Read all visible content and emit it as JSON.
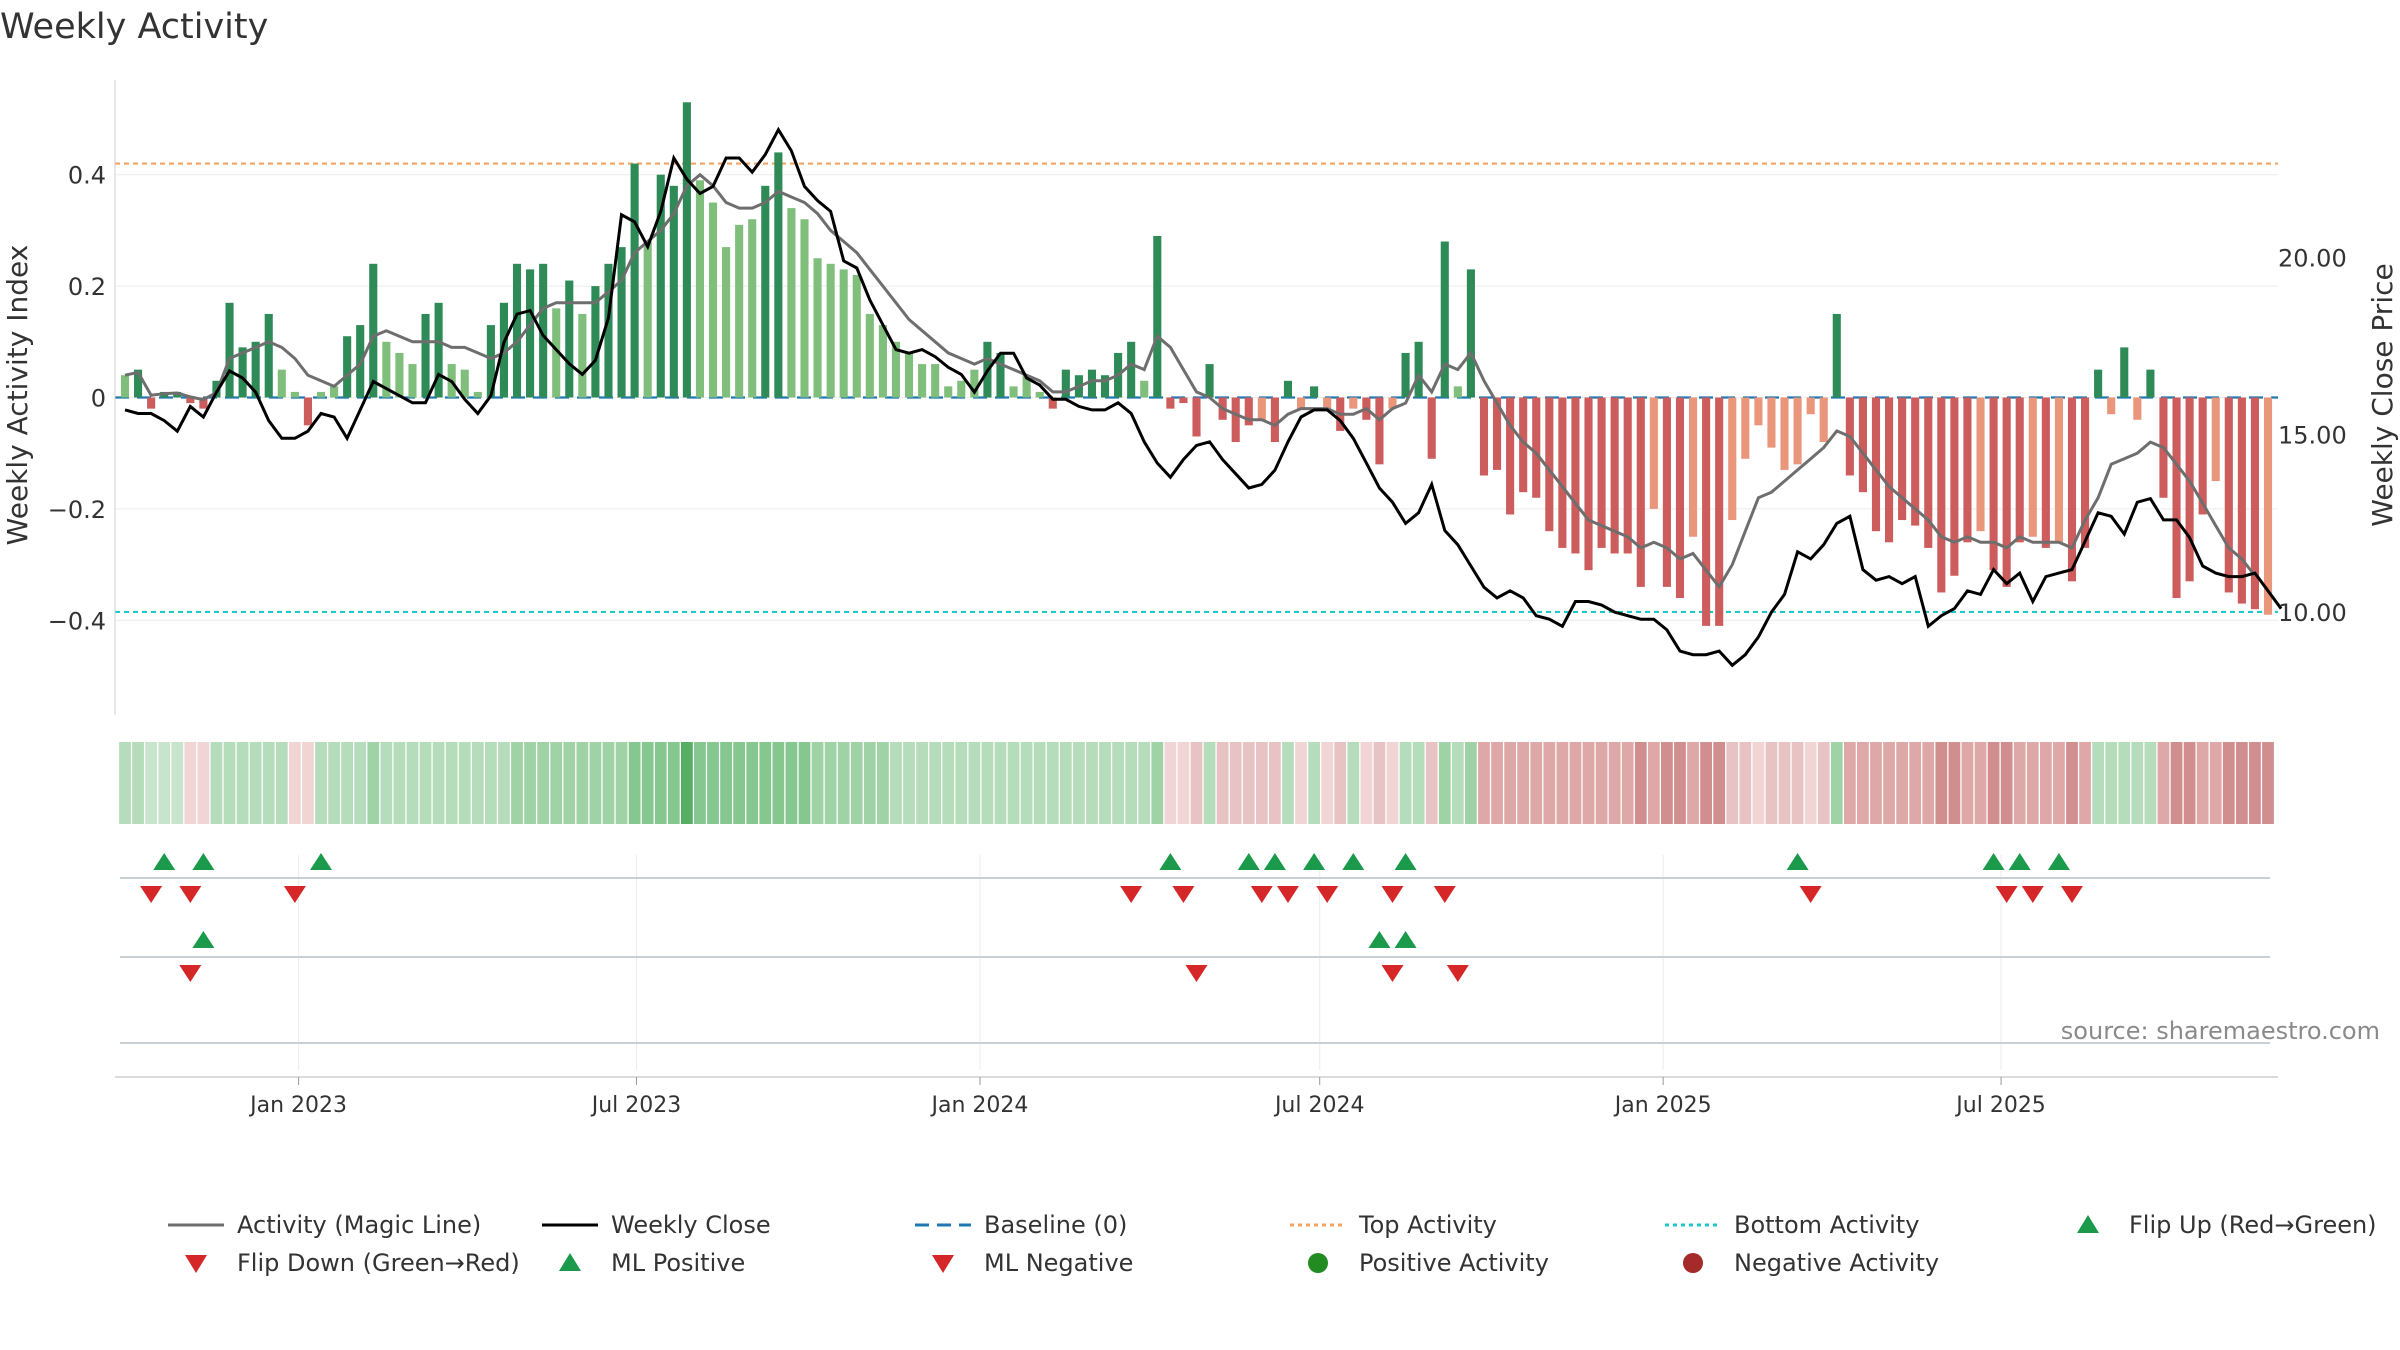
{
  "title": "Weekly Activity",
  "source": "source: sharemaestro.com",
  "colors": {
    "pos_dark": "#2e8b57",
    "pos_light": "#7fbf7b",
    "neg_dark": "#cd5c5c",
    "neg_light": "#e9967a",
    "magic": "#6e6e6e",
    "close": "#000000",
    "baseline": "#1f77b4",
    "top": "#f4a460",
    "bottom": "#20c9c9",
    "up": "#1a9a4a",
    "down": "#d62728",
    "pos_dot": "#228b22",
    "neg_dot": "#a52a2a"
  },
  "legend": [
    {
      "label": "Activity (Magic Line)",
      "kind": "line",
      "color": "#6e6e6e",
      "dash": ""
    },
    {
      "label": "Weekly Close",
      "kind": "line",
      "color": "#000000",
      "dash": ""
    },
    {
      "label": "Baseline (0)",
      "kind": "line",
      "color": "#1f77b4",
      "dash": "14,8"
    },
    {
      "label": "Top Activity",
      "kind": "line",
      "color": "#f4a460",
      "dash": "4,4"
    },
    {
      "label": "Bottom Activity",
      "kind": "line",
      "color": "#20c9c9",
      "dash": "4,4"
    },
    {
      "label": "Flip Up (Red→Green)",
      "kind": "tri-up",
      "color": "#1a9a4a"
    },
    {
      "label": "Flip Down (Green→Red)",
      "kind": "tri-down",
      "color": "#d62728"
    },
    {
      "label": "ML Positive",
      "kind": "tri-up",
      "color": "#1a9a4a"
    },
    {
      "label": "ML Negative",
      "kind": "tri-down",
      "color": "#d62728"
    },
    {
      "label": "Positive Activity",
      "kind": "dot",
      "color": "#228b22"
    },
    {
      "label": "Negative Activity",
      "kind": "dot",
      "color": "#a52a2a"
    }
  ],
  "chart_data": {
    "type": "bar",
    "title": "Weekly Activity",
    "ylabel": "Weekly Activity Index",
    "y2label": "Weekly Close Price",
    "ylim": [
      -0.57,
      0.57
    ],
    "y2lim": [
      7.1,
      25.0
    ],
    "yticks": [
      "0.4",
      "0.2",
      "0",
      "−0.2",
      "−0.4"
    ],
    "ytick_values": [
      0.4,
      0.2,
      0,
      -0.2,
      -0.4
    ],
    "y2ticks": [
      "20.00",
      "15.00",
      "10.00"
    ],
    "y2tick_values": [
      20,
      15,
      10
    ],
    "x_start": "2022-09-30",
    "x_step_days": 7,
    "x_ticks": [
      {
        "label": "Jan 2023",
        "date": "2023-01-01"
      },
      {
        "label": "Jul 2023",
        "date": "2023-07-01"
      },
      {
        "label": "Jan 2024",
        "date": "2024-01-01"
      },
      {
        "label": "Jul 2024",
        "date": "2024-07-01"
      },
      {
        "label": "Jan 2025",
        "date": "2025-01-01"
      },
      {
        "label": "Jul 2025",
        "date": "2025-07-01"
      }
    ],
    "top_activity": 0.42,
    "bottom_activity": -0.385,
    "grid": true,
    "legend_position": "bottom",
    "activity": [
      0.04,
      0.05,
      -0.02,
      0.01,
      0.01,
      -0.01,
      -0.02,
      0.03,
      0.17,
      0.09,
      0.1,
      0.15,
      0.05,
      0.01,
      -0.05,
      0.01,
      0.02,
      0.11,
      0.13,
      0.24,
      0.1,
      0.08,
      0.06,
      0.15,
      0.17,
      0.06,
      0.05,
      0.01,
      0.13,
      0.17,
      0.24,
      0.23,
      0.24,
      0.16,
      0.21,
      0.15,
      0.2,
      0.24,
      0.27,
      0.42,
      0.28,
      0.4,
      0.38,
      0.53,
      0.39,
      0.35,
      0.27,
      0.31,
      0.32,
      0.38,
      0.44,
      0.34,
      0.32,
      0.25,
      0.24,
      0.23,
      0.22,
      0.15,
      0.13,
      0.1,
      0.08,
      0.06,
      0.06,
      0.02,
      0.03,
      0.05,
      0.1,
      0.08,
      0.02,
      0.04,
      0.01,
      -0.02,
      0.05,
      0.04,
      0.05,
      0.04,
      0.08,
      0.1,
      0.03,
      0.29,
      -0.02,
      -0.01,
      -0.07,
      0.06,
      -0.04,
      -0.08,
      -0.05,
      -0.04,
      -0.08,
      0.03,
      -0.02,
      0.02,
      -0.02,
      -0.06,
      -0.02,
      -0.04,
      -0.12,
      -0.02,
      0.08,
      0.1,
      -0.11,
      0.28,
      0.02,
      0.23,
      -0.14,
      -0.13,
      -0.21,
      -0.17,
      -0.18,
      -0.24,
      -0.27,
      -0.28,
      -0.31,
      -0.27,
      -0.28,
      -0.28,
      -0.34,
      -0.2,
      -0.34,
      -0.36,
      -0.25,
      -0.41,
      -0.41,
      -0.22,
      -0.11,
      -0.05,
      -0.09,
      -0.13,
      -0.12,
      -0.03,
      -0.08,
      0.15,
      -0.14,
      -0.17,
      -0.24,
      -0.26,
      -0.22,
      -0.23,
      -0.27,
      -0.35,
      -0.32,
      -0.26,
      -0.24,
      -0.31,
      -0.34,
      -0.26,
      -0.25,
      -0.27,
      -0.26,
      -0.33,
      -0.27,
      0.05,
      -0.03,
      0.09,
      -0.04,
      0.05,
      -0.18,
      -0.36,
      -0.33,
      -0.21,
      -0.15,
      -0.35,
      -0.37,
      -0.38,
      -0.39
    ],
    "magic_line": [
      0.04,
      0.045,
      0.004,
      0.007,
      0.008,
      0.001,
      -0.004,
      0.009,
      0.07,
      0.08,
      0.09,
      0.1,
      0.09,
      0.07,
      0.04,
      0.03,
      0.02,
      0.04,
      0.06,
      0.11,
      0.12,
      0.11,
      0.1,
      0.1,
      0.1,
      0.09,
      0.09,
      0.08,
      0.07,
      0.08,
      0.1,
      0.13,
      0.16,
      0.17,
      0.17,
      0.17,
      0.17,
      0.19,
      0.21,
      0.26,
      0.28,
      0.3,
      0.33,
      0.38,
      0.4,
      0.38,
      0.35,
      0.34,
      0.34,
      0.35,
      0.37,
      0.36,
      0.35,
      0.33,
      0.3,
      0.28,
      0.26,
      0.23,
      0.2,
      0.17,
      0.14,
      0.12,
      0.1,
      0.08,
      0.07,
      0.06,
      0.07,
      0.06,
      0.05,
      0.04,
      0.03,
      0.01,
      0.01,
      0.02,
      0.03,
      0.03,
      0.04,
      0.06,
      0.05,
      0.11,
      0.09,
      0.05,
      0.01,
      0.0,
      -0.02,
      -0.03,
      -0.04,
      -0.04,
      -0.05,
      -0.03,
      -0.02,
      -0.02,
      -0.02,
      -0.03,
      -0.03,
      -0.02,
      -0.04,
      -0.02,
      -0.01,
      0.04,
      0.01,
      0.06,
      0.05,
      0.08,
      0.03,
      -0.01,
      -0.05,
      -0.08,
      -0.1,
      -0.13,
      -0.16,
      -0.19,
      -0.22,
      -0.23,
      -0.24,
      -0.25,
      -0.27,
      -0.26,
      -0.27,
      -0.29,
      -0.28,
      -0.31,
      -0.34,
      -0.3,
      -0.24,
      -0.18,
      -0.17,
      -0.15,
      -0.13,
      -0.11,
      -0.09,
      -0.06,
      -0.07,
      -0.1,
      -0.13,
      -0.16,
      -0.18,
      -0.2,
      -0.22,
      -0.25,
      -0.26,
      -0.25,
      -0.26,
      -0.26,
      -0.27,
      -0.25,
      -0.26,
      -0.26,
      -0.26,
      -0.27,
      -0.22,
      -0.18,
      -0.12,
      -0.11,
      -0.1,
      -0.08,
      -0.09,
      -0.12,
      -0.15,
      -0.19,
      -0.23,
      -0.27,
      -0.29,
      -0.32
    ]
  },
  "price_close": [
    15.7,
    15.6,
    15.6,
    15.4,
    15.1,
    15.8,
    15.5,
    16.2,
    16.8,
    16.6,
    16.2,
    15.4,
    14.9,
    14.9,
    15.1,
    15.6,
    15.5,
    14.9,
    15.7,
    16.5,
    16.3,
    16.1,
    15.9,
    15.9,
    16.7,
    16.5,
    16.0,
    15.6,
    16.1,
    17.6,
    18.4,
    18.5,
    17.8,
    17.4,
    17.0,
    16.7,
    17.1,
    18.3,
    21.2,
    21.0,
    20.3,
    21.3,
    22.8,
    22.2,
    21.8,
    22.0,
    22.8,
    22.8,
    22.4,
    22.9,
    23.6,
    23.0,
    22.0,
    21.6,
    21.3,
    19.9,
    19.7,
    18.8,
    18.1,
    17.4,
    17.3,
    17.4,
    17.2,
    16.9,
    16.7,
    16.2,
    16.8,
    17.3,
    17.3,
    16.6,
    16.4,
    16.0,
    16.0,
    15.8,
    15.7,
    15.7,
    15.9,
    15.6,
    14.8,
    14.2,
    13.8,
    14.3,
    14.7,
    14.8,
    14.3,
    13.9,
    13.5,
    13.6,
    14.0,
    14.8,
    15.5,
    15.7,
    15.7,
    15.4,
    14.9,
    14.2,
    13.5,
    13.1,
    12.5,
    12.8,
    13.6,
    12.3,
    11.9,
    11.3,
    10.7,
    10.4,
    10.6,
    10.4,
    9.9,
    9.8,
    9.6,
    10.3,
    10.3,
    10.2,
    10.0,
    9.9,
    9.8,
    9.8,
    9.5,
    8.9,
    8.8,
    8.8,
    8.9,
    8.5,
    8.8,
    9.3,
    10.0,
    10.5,
    11.7,
    11.5,
    11.9,
    12.5,
    12.7,
    11.2,
    10.9,
    11.0,
    10.8,
    11.0,
    9.6,
    9.9,
    10.1,
    10.6,
    10.5,
    11.2,
    10.8,
    11.1,
    10.3,
    11.0,
    11.1,
    11.2,
    12.0,
    12.8,
    12.7,
    12.2,
    13.1,
    13.2,
    12.6,
    12.6,
    12.1,
    11.3,
    11.1,
    11.0,
    11.0,
    11.1,
    10.6,
    10.1
  ],
  "heat_levels": [
    -2,
    -2,
    -1,
    -1,
    -1,
    1,
    1,
    -2,
    -2,
    -2,
    -2,
    -2,
    -2,
    1,
    1,
    -2,
    -2,
    -2,
    -2,
    -3,
    -2,
    -2,
    -2,
    -2,
    -2,
    -2,
    -2,
    -2,
    -2,
    -2,
    -3,
    -3,
    -3,
    -3,
    -3,
    -3,
    -3,
    -3,
    -3,
    -4,
    -4,
    -4,
    -4,
    -5,
    -4,
    -4,
    -4,
    -4,
    -4,
    -4,
    -4,
    -4,
    -4,
    -3,
    -3,
    -3,
    -3,
    -3,
    -3,
    -2,
    -2,
    -2,
    -2,
    -2,
    -2,
    -2,
    -2,
    -2,
    -2,
    -2,
    -2,
    -2,
    -2,
    -2,
    -2,
    -2,
    -2,
    -2,
    -2,
    -3,
    1,
    1,
    2,
    -2,
    2,
    2,
    2,
    2,
    2,
    -2,
    1,
    -2,
    1,
    2,
    -2,
    1,
    2,
    1,
    -2,
    -2,
    2,
    -3,
    -2,
    -3,
    3,
    3,
    3,
    3,
    3,
    3,
    3,
    3,
    3,
    3,
    3,
    3,
    4,
    3,
    4,
    4,
    3,
    4,
    4,
    2,
    2,
    1,
    2,
    2,
    2,
    1,
    2,
    -3,
    3,
    3,
    3,
    3,
    3,
    3,
    3,
    4,
    4,
    3,
    3,
    4,
    4,
    3,
    3,
    3,
    3,
    4,
    3,
    -2,
    -2,
    -2,
    -2,
    -2,
    3,
    4,
    4,
    3,
    3,
    4,
    4,
    4,
    4
  ],
  "flip_up": [
    3,
    6,
    15,
    80,
    86,
    88,
    91,
    94,
    98,
    128,
    143,
    145,
    148
  ],
  "flip_down": [
    2,
    5,
    13,
    77,
    81,
    87,
    89,
    92,
    97,
    101,
    129,
    144,
    146,
    149
  ],
  "ml_positive": [
    6,
    96,
    98
  ],
  "ml_negative": [
    5,
    82,
    97,
    102
  ]
}
